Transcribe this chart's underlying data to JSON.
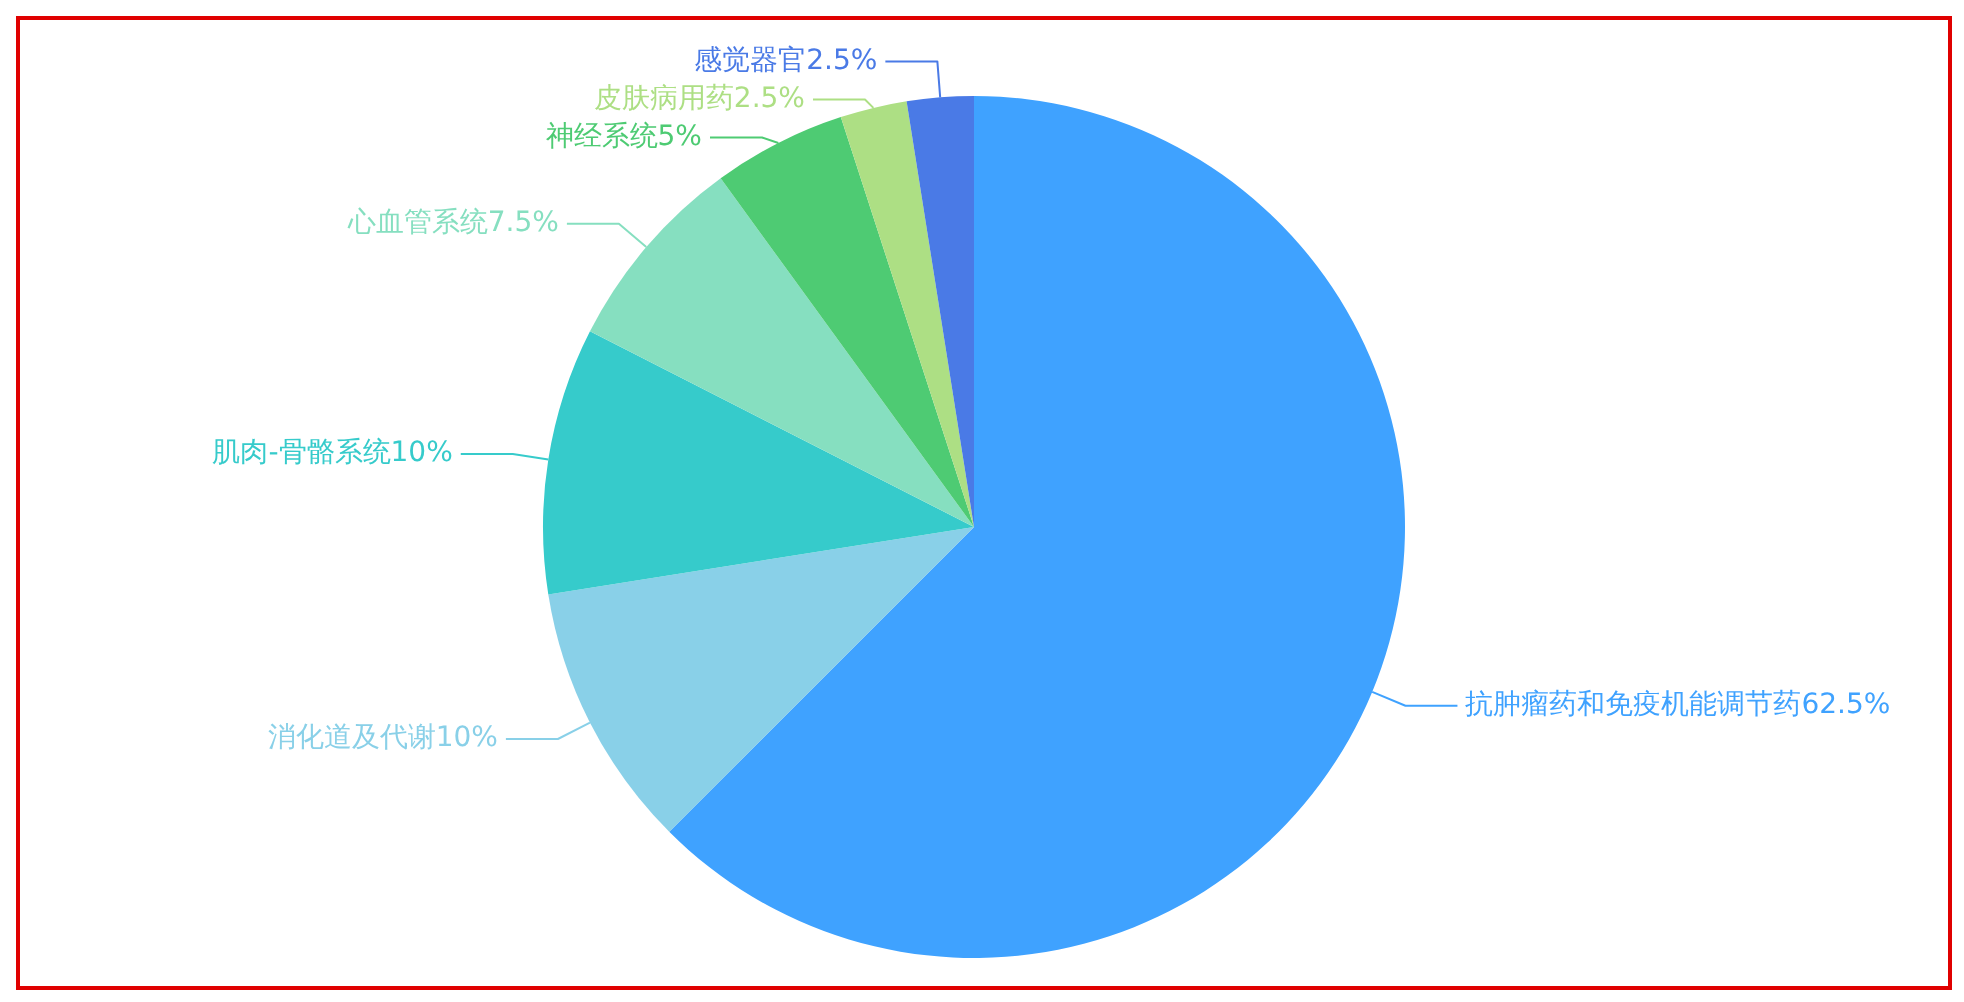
{
  "chart_data": {
    "type": "pie",
    "categories": [
      "抗肿瘤药和免疫机能调节药",
      "消化道及代谢",
      "肌肉-骨骼系统",
      "心血管系统",
      "神经系统",
      "皮肤病用药",
      "感觉器官"
    ],
    "values": [
      62.5,
      10,
      10,
      7.5,
      5,
      2.5,
      2.5
    ],
    "value_labels": [
      "62.5%",
      "10%",
      "10%",
      "7.5%",
      "5%",
      "2.5%",
      "2.5%"
    ],
    "colors": [
      "#3fa2ff",
      "#89d0e8",
      "#36cbcb",
      "#86dfc0",
      "#4ecb73",
      "#addf84",
      "#4a7ae6"
    ],
    "legend": false
  }
}
